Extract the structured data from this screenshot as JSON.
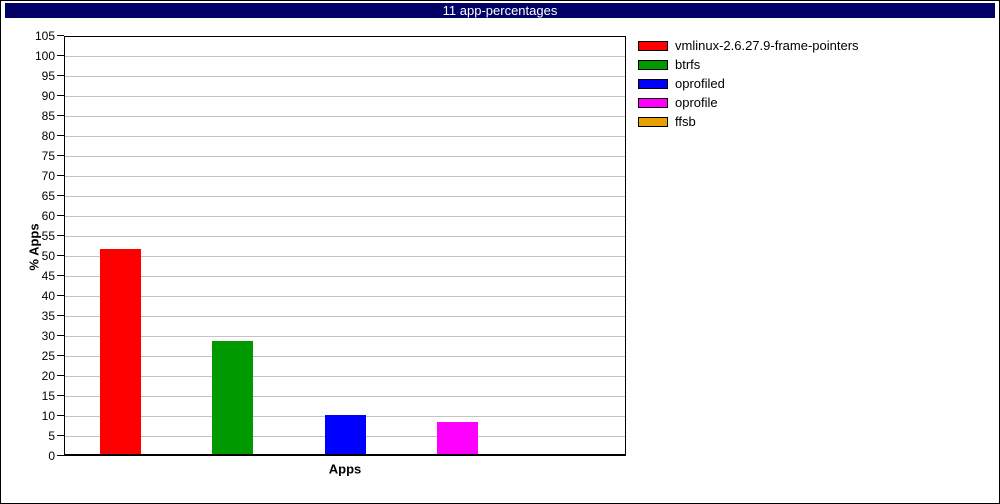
{
  "title_bar": {
    "text": "11 app-percentages",
    "bg": "#000066",
    "fg": "#ffffff"
  },
  "colors": {
    "grid": "#c4c4c4",
    "axis": "#000000",
    "background": "#ffffff"
  },
  "chart_data": {
    "type": "bar",
    "title": "11 app-percentages",
    "xlabel": "Apps",
    "ylabel": "% Apps",
    "ylim": [
      0,
      105
    ],
    "ytick_step": 5,
    "yticks": [
      0,
      5,
      10,
      15,
      20,
      25,
      30,
      35,
      40,
      45,
      50,
      55,
      60,
      65,
      70,
      75,
      80,
      85,
      90,
      95,
      100,
      105
    ],
    "grid": "horizontal-gray-lines-every-5",
    "legend_position": "outside-upper-right",
    "xticklabels": [],
    "series": [
      {
        "name": "vmlinux-2.6.27.9-frame-pointers",
        "color": "#ff0000",
        "value": 51.8
      },
      {
        "name": "btrfs",
        "color": "#009900",
        "value": 28.8
      },
      {
        "name": "oprofiled",
        "color": "#0000ff",
        "value": 10.2
      },
      {
        "name": "oprofile",
        "color": "#ff00ff",
        "value": 8.4
      },
      {
        "name": "ffsb",
        "color": "#e8a000",
        "value": 0.6
      }
    ]
  }
}
